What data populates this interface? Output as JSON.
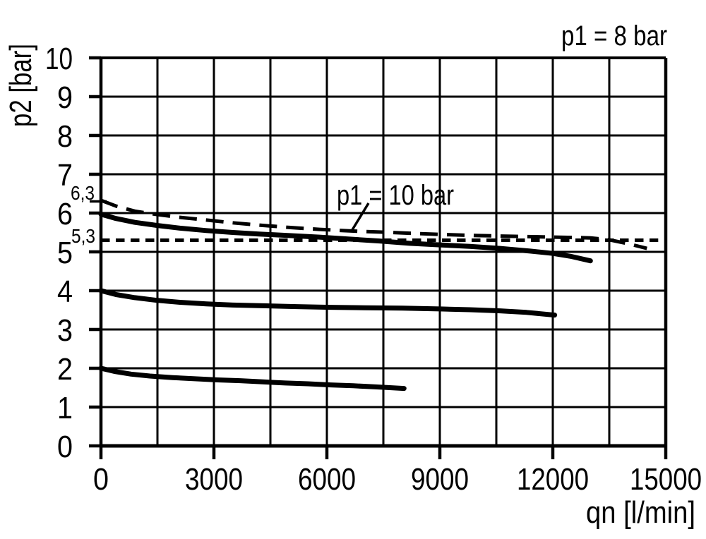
{
  "colors": {
    "ink": "#000000",
    "background": "#ffffff"
  },
  "chart_data": {
    "type": "line",
    "title": "",
    "xlabel": "qn [l/min]",
    "ylabel": "p2 [bar]",
    "xlim": [
      0,
      15000
    ],
    "ylim": [
      0,
      10
    ],
    "x_grid_step": 1500,
    "y_grid_step": 1,
    "grid": true,
    "legend_position": "none",
    "x_ticks": [
      {
        "v": 0,
        "label": "0"
      },
      {
        "v": 3000,
        "label": "3000"
      },
      {
        "v": 6000,
        "label": "6000"
      },
      {
        "v": 9000,
        "label": "9000"
      },
      {
        "v": 12000,
        "label": "12000"
      },
      {
        "v": 15000,
        "label": "15000"
      }
    ],
    "y_ticks": [
      {
        "v": 0,
        "label": "0"
      },
      {
        "v": 1,
        "label": "1"
      },
      {
        "v": 2,
        "label": "2"
      },
      {
        "v": 3,
        "label": "3"
      },
      {
        "v": 4,
        "label": "4"
      },
      {
        "v": 5,
        "label": "5"
      },
      {
        "v": 6,
        "label": "6"
      },
      {
        "v": 7,
        "label": "7"
      },
      {
        "v": 8,
        "label": "8"
      },
      {
        "v": 9,
        "label": "9"
      },
      {
        "v": 10,
        "label": "10"
      }
    ],
    "y_marks": [
      {
        "v": 6.3,
        "label": "6,3",
        "tick": true
      },
      {
        "v": 5.3,
        "label": "5,3",
        "tick": false
      }
    ],
    "annotations": {
      "top_right": "p1 = 8 bar",
      "curve_label": "p1 = 10 bar"
    },
    "series": [
      {
        "id": "reference-5-3",
        "name": "",
        "style": "short-dash",
        "points": [
          [
            0,
            5.3
          ],
          [
            14800,
            5.3
          ]
        ]
      },
      {
        "id": "p1-10-bar",
        "name": "p1 = 10 bar",
        "style": "long-dash",
        "points": [
          [
            0,
            6.33
          ],
          [
            400,
            6.18
          ],
          [
            900,
            6.05
          ],
          [
            1500,
            5.96
          ],
          [
            2100,
            5.89
          ],
          [
            2800,
            5.82
          ],
          [
            3500,
            5.75
          ],
          [
            4200,
            5.69
          ],
          [
            5000,
            5.63
          ],
          [
            5800,
            5.58
          ],
          [
            6600,
            5.54
          ],
          [
            7400,
            5.51
          ],
          [
            8200,
            5.48
          ],
          [
            9000,
            5.45
          ],
          [
            10000,
            5.42
          ],
          [
            11000,
            5.4
          ],
          [
            12000,
            5.38
          ],
          [
            13000,
            5.36
          ],
          [
            13500,
            5.31
          ],
          [
            14000,
            5.21
          ],
          [
            14500,
            5.09
          ]
        ]
      },
      {
        "id": "p1-8-bar",
        "name": "p1 = 8 bar",
        "style": "solid",
        "points": [
          [
            0,
            5.97
          ],
          [
            400,
            5.86
          ],
          [
            900,
            5.76
          ],
          [
            1500,
            5.68
          ],
          [
            2100,
            5.61
          ],
          [
            2800,
            5.55
          ],
          [
            3500,
            5.5
          ],
          [
            4200,
            5.46
          ],
          [
            5000,
            5.42
          ],
          [
            5800,
            5.38
          ],
          [
            6600,
            5.33
          ],
          [
            7400,
            5.28
          ],
          [
            8200,
            5.22
          ],
          [
            9000,
            5.18
          ],
          [
            9800,
            5.14
          ],
          [
            10600,
            5.09
          ],
          [
            11400,
            5.02
          ],
          [
            12000,
            4.96
          ],
          [
            12500,
            4.88
          ],
          [
            13000,
            4.77
          ]
        ]
      },
      {
        "id": "curve-4-bar",
        "name": "",
        "style": "solid",
        "points": [
          [
            0,
            4.0
          ],
          [
            400,
            3.9
          ],
          [
            900,
            3.82
          ],
          [
            1500,
            3.75
          ],
          [
            2100,
            3.7
          ],
          [
            2800,
            3.66
          ],
          [
            3500,
            3.63
          ],
          [
            4300,
            3.61
          ],
          [
            5200,
            3.59
          ],
          [
            6100,
            3.57
          ],
          [
            7000,
            3.56
          ],
          [
            8000,
            3.55
          ],
          [
            9000,
            3.53
          ],
          [
            9800,
            3.51
          ],
          [
            10600,
            3.48
          ],
          [
            11300,
            3.44
          ],
          [
            12050,
            3.37
          ]
        ]
      },
      {
        "id": "curve-2-bar",
        "name": "",
        "style": "solid",
        "points": [
          [
            0,
            2.0
          ],
          [
            350,
            1.92
          ],
          [
            800,
            1.85
          ],
          [
            1300,
            1.8
          ],
          [
            1900,
            1.76
          ],
          [
            2500,
            1.73
          ],
          [
            3100,
            1.7
          ],
          [
            3700,
            1.68
          ],
          [
            4300,
            1.65
          ],
          [
            4900,
            1.62
          ],
          [
            5500,
            1.6
          ],
          [
            6100,
            1.57
          ],
          [
            6700,
            1.55
          ],
          [
            7300,
            1.52
          ],
          [
            8050,
            1.48
          ]
        ]
      }
    ]
  }
}
